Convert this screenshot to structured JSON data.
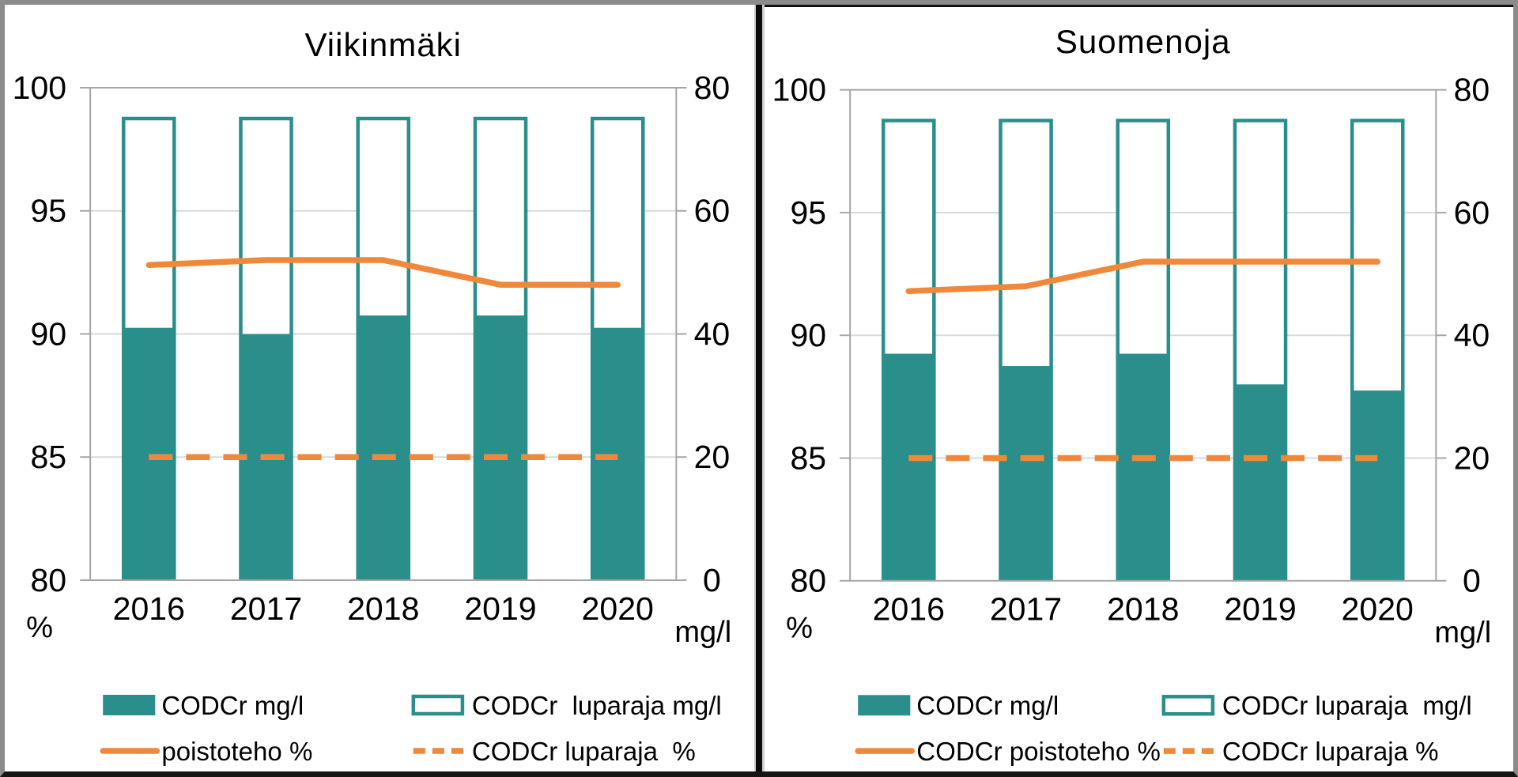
{
  "colors": {
    "teal": "#2A8F8B",
    "orange": "#F0883C",
    "grid": "#D9D9D9",
    "frame": "#A6A6A6",
    "text": "#000000"
  },
  "chart_data": [
    {
      "type": "bar",
      "title": "Viikinmäki",
      "categories": [
        "2016",
        "2017",
        "2018",
        "2019",
        "2020"
      ],
      "left_axis": {
        "label": "%",
        "min": 80,
        "max": 100,
        "ticks": [
          100,
          95,
          90,
          85,
          80
        ]
      },
      "right_axis": {
        "label": "mg/l",
        "min": 0,
        "max": 80,
        "ticks": [
          80,
          60,
          40,
          20,
          0
        ]
      },
      "grid": "horizontal",
      "legend_position": "bottom",
      "series": [
        {
          "name": "CODCr mg/l",
          "kind": "bar-filled",
          "axis": "right",
          "values": [
            41,
            40,
            43,
            43,
            41
          ]
        },
        {
          "name": "CODCr  luparaja mg/l",
          "kind": "bar-outline",
          "axis": "right",
          "values": [
            75,
            75,
            75,
            75,
            75
          ]
        },
        {
          "name": "poistoteho %",
          "kind": "line-solid",
          "axis": "left",
          "values": [
            92.8,
            93,
            93,
            92,
            92
          ]
        },
        {
          "name": "CODCr luparaja  %",
          "kind": "line-dashed",
          "axis": "left",
          "values": [
            85,
            85,
            85,
            85,
            85
          ]
        }
      ]
    },
    {
      "type": "bar",
      "title": "Suomenoja",
      "categories": [
        "2016",
        "2017",
        "2018",
        "2019",
        "2020"
      ],
      "left_axis": {
        "label": "%",
        "min": 80,
        "max": 100,
        "ticks": [
          100,
          95,
          90,
          85,
          80
        ]
      },
      "right_axis": {
        "label": "mg/l",
        "min": 0,
        "max": 80,
        "ticks": [
          80,
          60,
          40,
          20,
          0
        ]
      },
      "grid": "horizontal",
      "legend_position": "bottom",
      "series": [
        {
          "name": "CODCr mg/l",
          "kind": "bar-filled",
          "axis": "right",
          "values": [
            37,
            35,
            37,
            32,
            31
          ]
        },
        {
          "name": "CODCr luparaja  mg/l",
          "kind": "bar-outline",
          "axis": "right",
          "values": [
            75,
            75,
            75,
            75,
            75
          ]
        },
        {
          "name": "CODCr poistoteho %",
          "kind": "line-solid",
          "axis": "left",
          "values": [
            91.8,
            92,
            93,
            93,
            93
          ]
        },
        {
          "name": "CODCr luparaja %",
          "kind": "line-dashed",
          "axis": "left",
          "values": [
            85,
            85,
            85,
            85,
            85
          ]
        }
      ]
    }
  ]
}
